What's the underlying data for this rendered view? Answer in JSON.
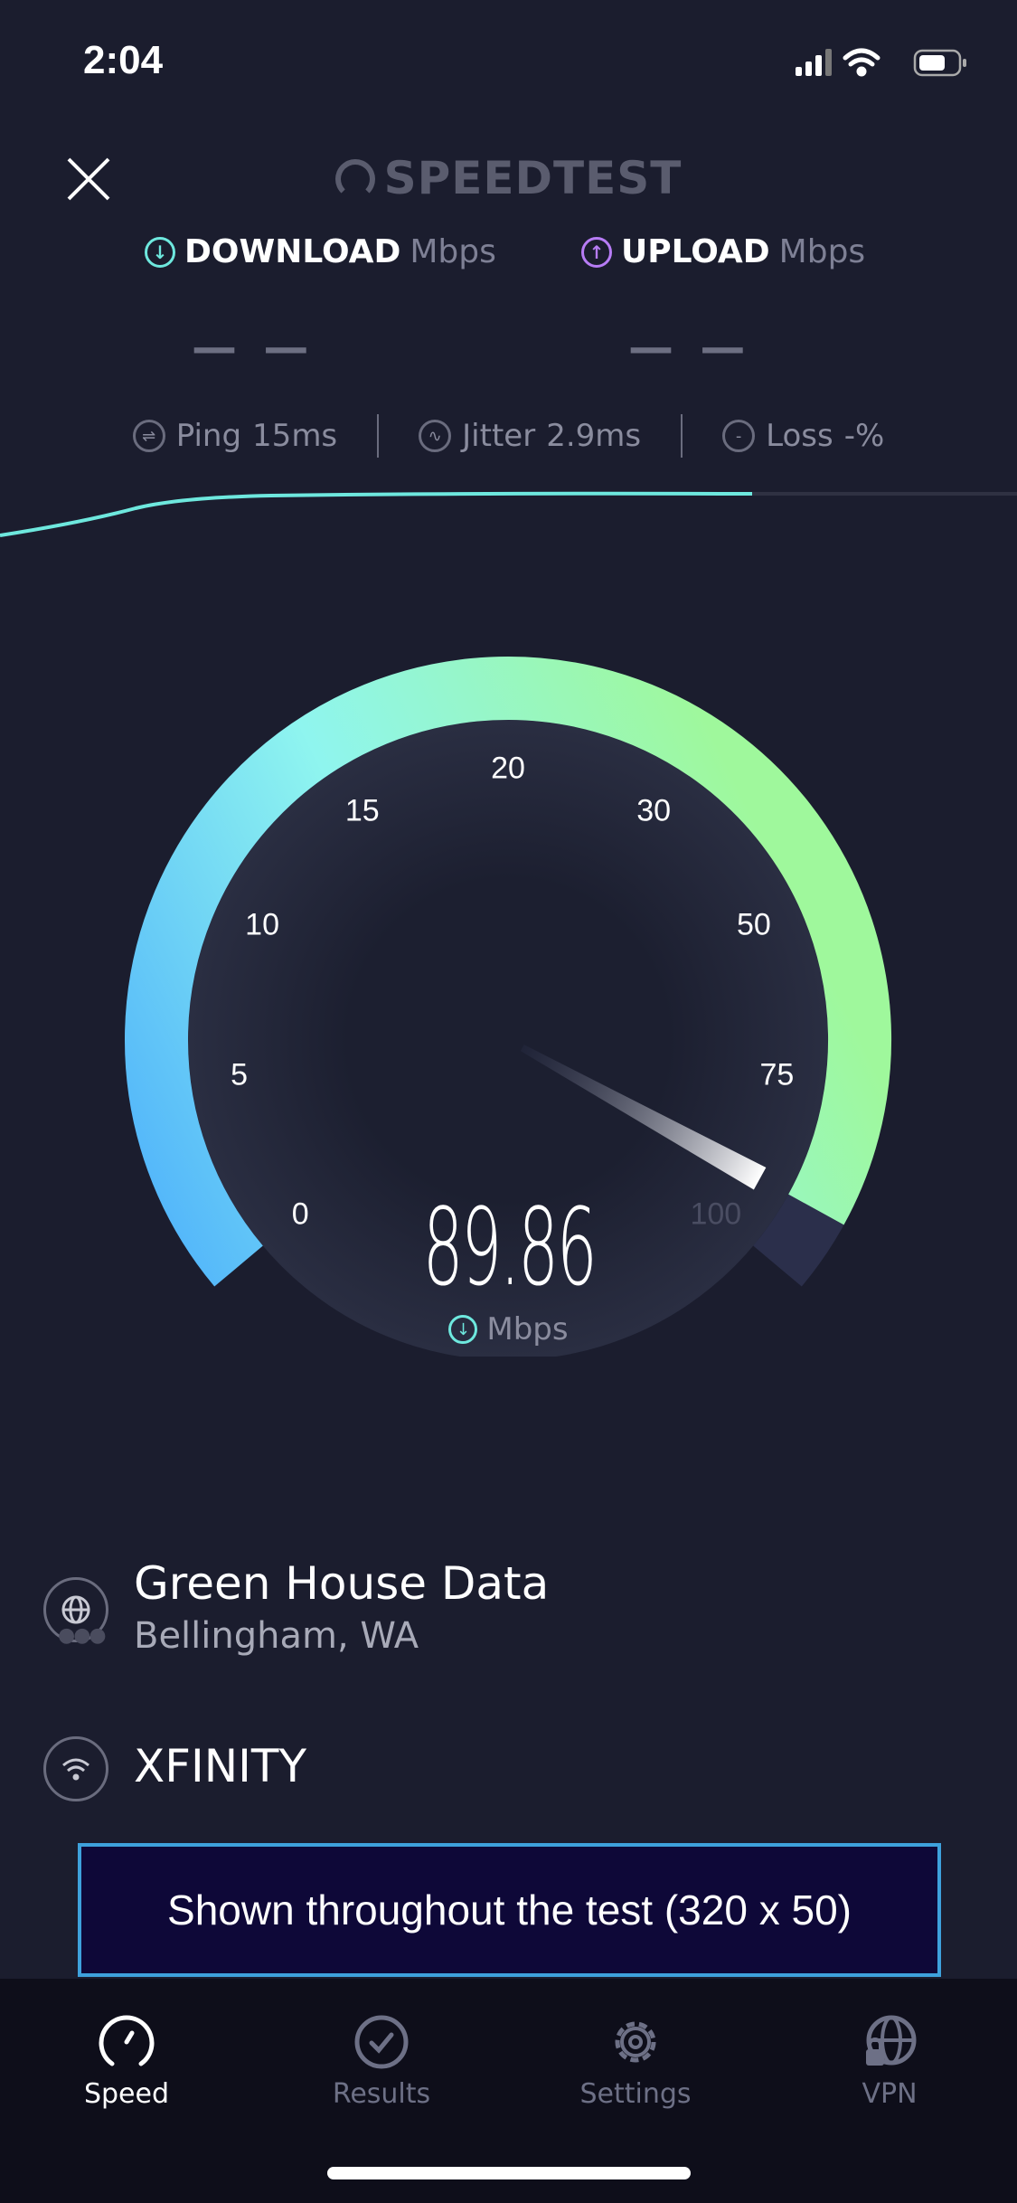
{
  "status_bar": {
    "time": "2:04",
    "icons": [
      "cellular-signal-icon",
      "wifi-icon",
      "battery-icon"
    ]
  },
  "header": {
    "close_icon": "close-icon",
    "logo": "SPEEDTEST"
  },
  "download": {
    "label": "DOWNLOAD",
    "unit": "Mbps",
    "value": "— —",
    "color": "#6ee8de"
  },
  "upload": {
    "label": "UPLOAD",
    "unit": "Mbps",
    "value": "— —",
    "color": "#b77cf5"
  },
  "metrics": [
    {
      "label": "Ping",
      "value": "15",
      "unit": "ms",
      "icon": "ping-icon"
    },
    {
      "label": "Jitter",
      "value": "2.9",
      "unit": "ms",
      "icon": "jitter-icon"
    },
    {
      "label": "Loss",
      "value": "-",
      "unit": "%",
      "icon": "loss-icon"
    }
  ],
  "gauge": {
    "ticks": [
      "0",
      "5",
      "10",
      "15",
      "20",
      "30",
      "50",
      "75",
      "100"
    ],
    "value": "89.86",
    "unit": "Mbps",
    "fill_fraction": 0.957,
    "colors": {
      "start": "#4fb2fb",
      "mid": "#8ff5ef",
      "end": "#9ff89c"
    }
  },
  "server": {
    "name": "Green House Data",
    "location": "Bellingham, WA",
    "icon": "globe-icon"
  },
  "isp": {
    "name": "XFINITY",
    "icon": "wifi-icon"
  },
  "ad": {
    "text": "Shown throughout the test (320 x 50)"
  },
  "tabs": [
    {
      "label": "Speed",
      "icon": "speedometer-icon",
      "active": true
    },
    {
      "label": "Results",
      "icon": "check-circle-icon",
      "active": false
    },
    {
      "label": "Settings",
      "icon": "gear-icon",
      "active": false
    },
    {
      "label": "VPN",
      "icon": "vpn-globe-lock-icon",
      "active": false
    }
  ]
}
